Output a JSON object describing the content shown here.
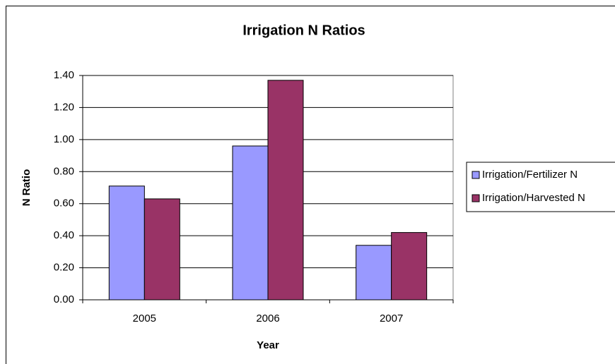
{
  "chart_data": {
    "type": "bar",
    "title": "Irrigation N Ratios",
    "x_label": "Year",
    "y_label": "N Ratio",
    "categories": [
      "2005",
      "2006",
      "2007"
    ],
    "series": [
      {
        "name": "Irrigation/Fertilizer N",
        "color": "#9999ff",
        "values": [
          0.71,
          0.96,
          0.34
        ]
      },
      {
        "name": "Irrigation/Harvested N",
        "color": "#993366",
        "values": [
          0.63,
          1.37,
          0.42
        ]
      }
    ],
    "ylim": [
      0,
      1.4
    ],
    "yticks": [
      {
        "value": 0,
        "label": "0.00"
      },
      {
        "value": 0.2,
        "label": "0.20"
      },
      {
        "value": 0.4,
        "label": "0.40"
      },
      {
        "value": 0.6,
        "label": "0.60"
      },
      {
        "value": 0.8,
        "label": "0.80"
      },
      {
        "value": 1,
        "label": "1.00"
      },
      {
        "value": 1.2,
        "label": "1.20"
      },
      {
        "value": 1.4,
        "label": "1.40"
      }
    ],
    "grid": true,
    "legend": "right"
  }
}
